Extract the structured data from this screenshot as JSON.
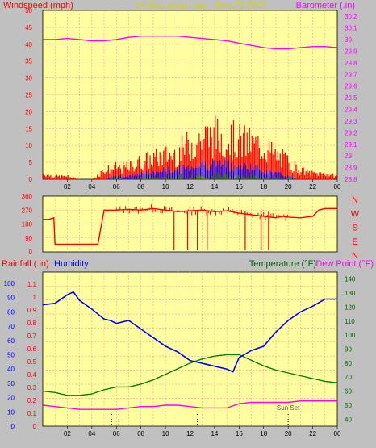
{
  "header": {
    "left_label": "Windspeed (mph)",
    "center_label": "24 hour graph day - May 12 2023",
    "right_label": "Barometer (.in)"
  },
  "colors": {
    "panel_bg": "#ffffa0",
    "frame_bg": "#c0c0c0",
    "grid": "#ff9999",
    "red": "#ff0000",
    "blue": "#0000ff",
    "green": "#008000",
    "magenta": "#ff00ff",
    "dark_green": "#006400",
    "gold": "#d4d400"
  },
  "compass_labels": [
    "N",
    "W",
    "S",
    "E",
    "N"
  ],
  "bottom_header": {
    "rainfall": "Rainfall (.in)",
    "humidity": "Humidity",
    "temperature": "Temperature (°F)",
    "dewpoint": "Dew Point (°F)"
  },
  "annotation": "Sun Set",
  "chart_data": [
    {
      "type": "line",
      "name": "wind_barometer",
      "x_ticks": [
        "02",
        "04",
        "06",
        "08",
        "10",
        "12",
        "14",
        "16",
        "18",
        "20",
        "22",
        "00"
      ],
      "y_left_ticks": [
        "0",
        "5",
        "10",
        "15",
        "20",
        "25",
        "30",
        "35",
        "40",
        "45",
        "50"
      ],
      "y_left_lim": [
        0,
        50
      ],
      "y_right_ticks": [
        "28.8",
        "28.9",
        "29",
        "29.1",
        "29.2",
        "29.3",
        "29.4",
        "29.5",
        "29.6",
        "29.7",
        "29.8",
        "29.9",
        "30",
        "30.1",
        "30.2"
      ],
      "y_right_lim": [
        28.8,
        30.25
      ],
      "series": [
        {
          "key": "barometer",
          "axis": "right",
          "color": "#ff00ff",
          "x": [
            0,
            1,
            2,
            3,
            4,
            5,
            6,
            7,
            8,
            9,
            10,
            11,
            12,
            13,
            14,
            15,
            16,
            17,
            18,
            19,
            20,
            21,
            22,
            23,
            24
          ],
          "y": [
            30.0,
            30.0,
            30.01,
            30.0,
            29.99,
            29.99,
            30.0,
            30.02,
            30.03,
            30.03,
            30.03,
            30.03,
            30.02,
            30.01,
            30.0,
            29.99,
            29.97,
            29.95,
            29.93,
            29.92,
            29.92,
            29.93,
            29.94,
            29.94,
            29.93
          ]
        },
        {
          "key": "wind_gust_envelope",
          "axis": "left",
          "color": "#ff0000",
          "x": [
            0,
            1,
            2,
            3,
            4,
            5,
            6,
            7,
            8,
            9,
            10,
            11,
            12,
            13,
            14,
            15,
            16,
            17,
            18,
            19,
            20,
            21,
            22,
            23,
            24
          ],
          "y": [
            2,
            1,
            1,
            0,
            0,
            3,
            4,
            4,
            6,
            7,
            8,
            9,
            12,
            14,
            15,
            14,
            13,
            12,
            11,
            8,
            6,
            3,
            2,
            2,
            1
          ]
        },
        {
          "key": "wind_avg_envelope",
          "axis": "left",
          "color": "#0000ff",
          "x": [
            0,
            1,
            2,
            3,
            4,
            5,
            6,
            7,
            8,
            9,
            10,
            11,
            12,
            13,
            14,
            15,
            16,
            17,
            18,
            19,
            20,
            21,
            22,
            23,
            24
          ],
          "y": [
            0,
            0,
            0,
            0,
            0,
            0,
            1,
            1,
            2,
            2,
            3,
            3,
            4,
            5,
            5,
            5,
            4,
            4,
            3,
            2,
            1,
            0,
            0,
            0,
            0
          ]
        }
      ]
    },
    {
      "type": "line",
      "name": "wind_direction",
      "y_ticks": [
        "0",
        "90",
        "180",
        "270",
        "360"
      ],
      "y_lim": [
        0,
        360
      ],
      "series": [
        {
          "key": "direction",
          "color": "#ff0000",
          "x": [
            0,
            0.5,
            0.9,
            1.0,
            2.0,
            4.0,
            4.5,
            5.0,
            6.0,
            7.0,
            8.0,
            9.0,
            10.0,
            11.0,
            12.0,
            13.0,
            14.0,
            15.0,
            16.0,
            17.0,
            18.0,
            19.0,
            19.5,
            20.0,
            21.0,
            22.0,
            22.5,
            23.0,
            24.0
          ],
          "y": [
            210,
            210,
            220,
            50,
            50,
            50,
            50,
            270,
            270,
            275,
            270,
            280,
            270,
            260,
            265,
            270,
            260,
            265,
            250,
            240,
            230,
            220,
            230,
            225,
            220,
            230,
            270,
            280,
            280
          ]
        }
      ]
    },
    {
      "type": "line",
      "name": "temp_humidity",
      "y_rain_ticks": [
        "0",
        "0.1",
        "0.2",
        "0.3",
        "0.4",
        "0.5",
        "0.6",
        "0.7",
        "0.8",
        "0.9",
        "1",
        "1.1"
      ],
      "y_hum_ticks": [
        "0",
        "10",
        "20",
        "30",
        "40",
        "50",
        "60",
        "70",
        "80",
        "90",
        "100"
      ],
      "y_hum_lim": [
        0,
        100
      ],
      "y_temp_ticks": [
        "40",
        "50",
        "60",
        "70",
        "80",
        "90",
        "100",
        "110",
        "120",
        "130",
        "140"
      ],
      "y_temp_lim": [
        35,
        145
      ],
      "series": [
        {
          "key": "humidity",
          "axis": "hum",
          "color": "#0000ff",
          "x": [
            0,
            1,
            2,
            2.5,
            3,
            4,
            5,
            5.5,
            6,
            7,
            8,
            9,
            10,
            11,
            12,
            13,
            14,
            15,
            15.5,
            16,
            17,
            18,
            19,
            20,
            21,
            22,
            23,
            24
          ],
          "y": [
            85,
            86,
            92,
            94,
            88,
            82,
            75,
            74,
            72,
            74,
            68,
            62,
            56,
            52,
            46,
            44,
            42,
            40,
            38,
            48,
            53,
            56,
            66,
            74,
            80,
            84,
            89,
            89
          ]
        },
        {
          "key": "temperature",
          "axis": "temp",
          "color": "#008000",
          "x": [
            0,
            1,
            2,
            3,
            4,
            5,
            6,
            7,
            8,
            9,
            10,
            11,
            12,
            13,
            14,
            15,
            16,
            17,
            18,
            19,
            20,
            21,
            22,
            23,
            24
          ],
          "y": [
            60,
            59,
            57,
            57,
            58,
            61,
            63,
            63,
            65,
            68,
            72,
            76,
            80,
            83,
            85,
            86,
            86,
            82,
            78,
            75,
            73,
            71,
            69,
            67,
            66
          ]
        },
        {
          "key": "dewpoint",
          "axis": "temp",
          "color": "#ff00ff",
          "x": [
            0,
            1,
            2,
            3,
            4,
            5,
            6,
            7,
            8,
            9,
            10,
            11,
            12,
            13,
            14,
            15,
            16,
            17,
            18,
            19,
            20,
            21,
            22,
            23,
            24
          ],
          "y": [
            50,
            49,
            48,
            47,
            47,
            47,
            47,
            48,
            49,
            49,
            50,
            50,
            49,
            48,
            48,
            48,
            51,
            52,
            52,
            52,
            52,
            53,
            53,
            53,
            53
          ]
        }
      ]
    }
  ]
}
